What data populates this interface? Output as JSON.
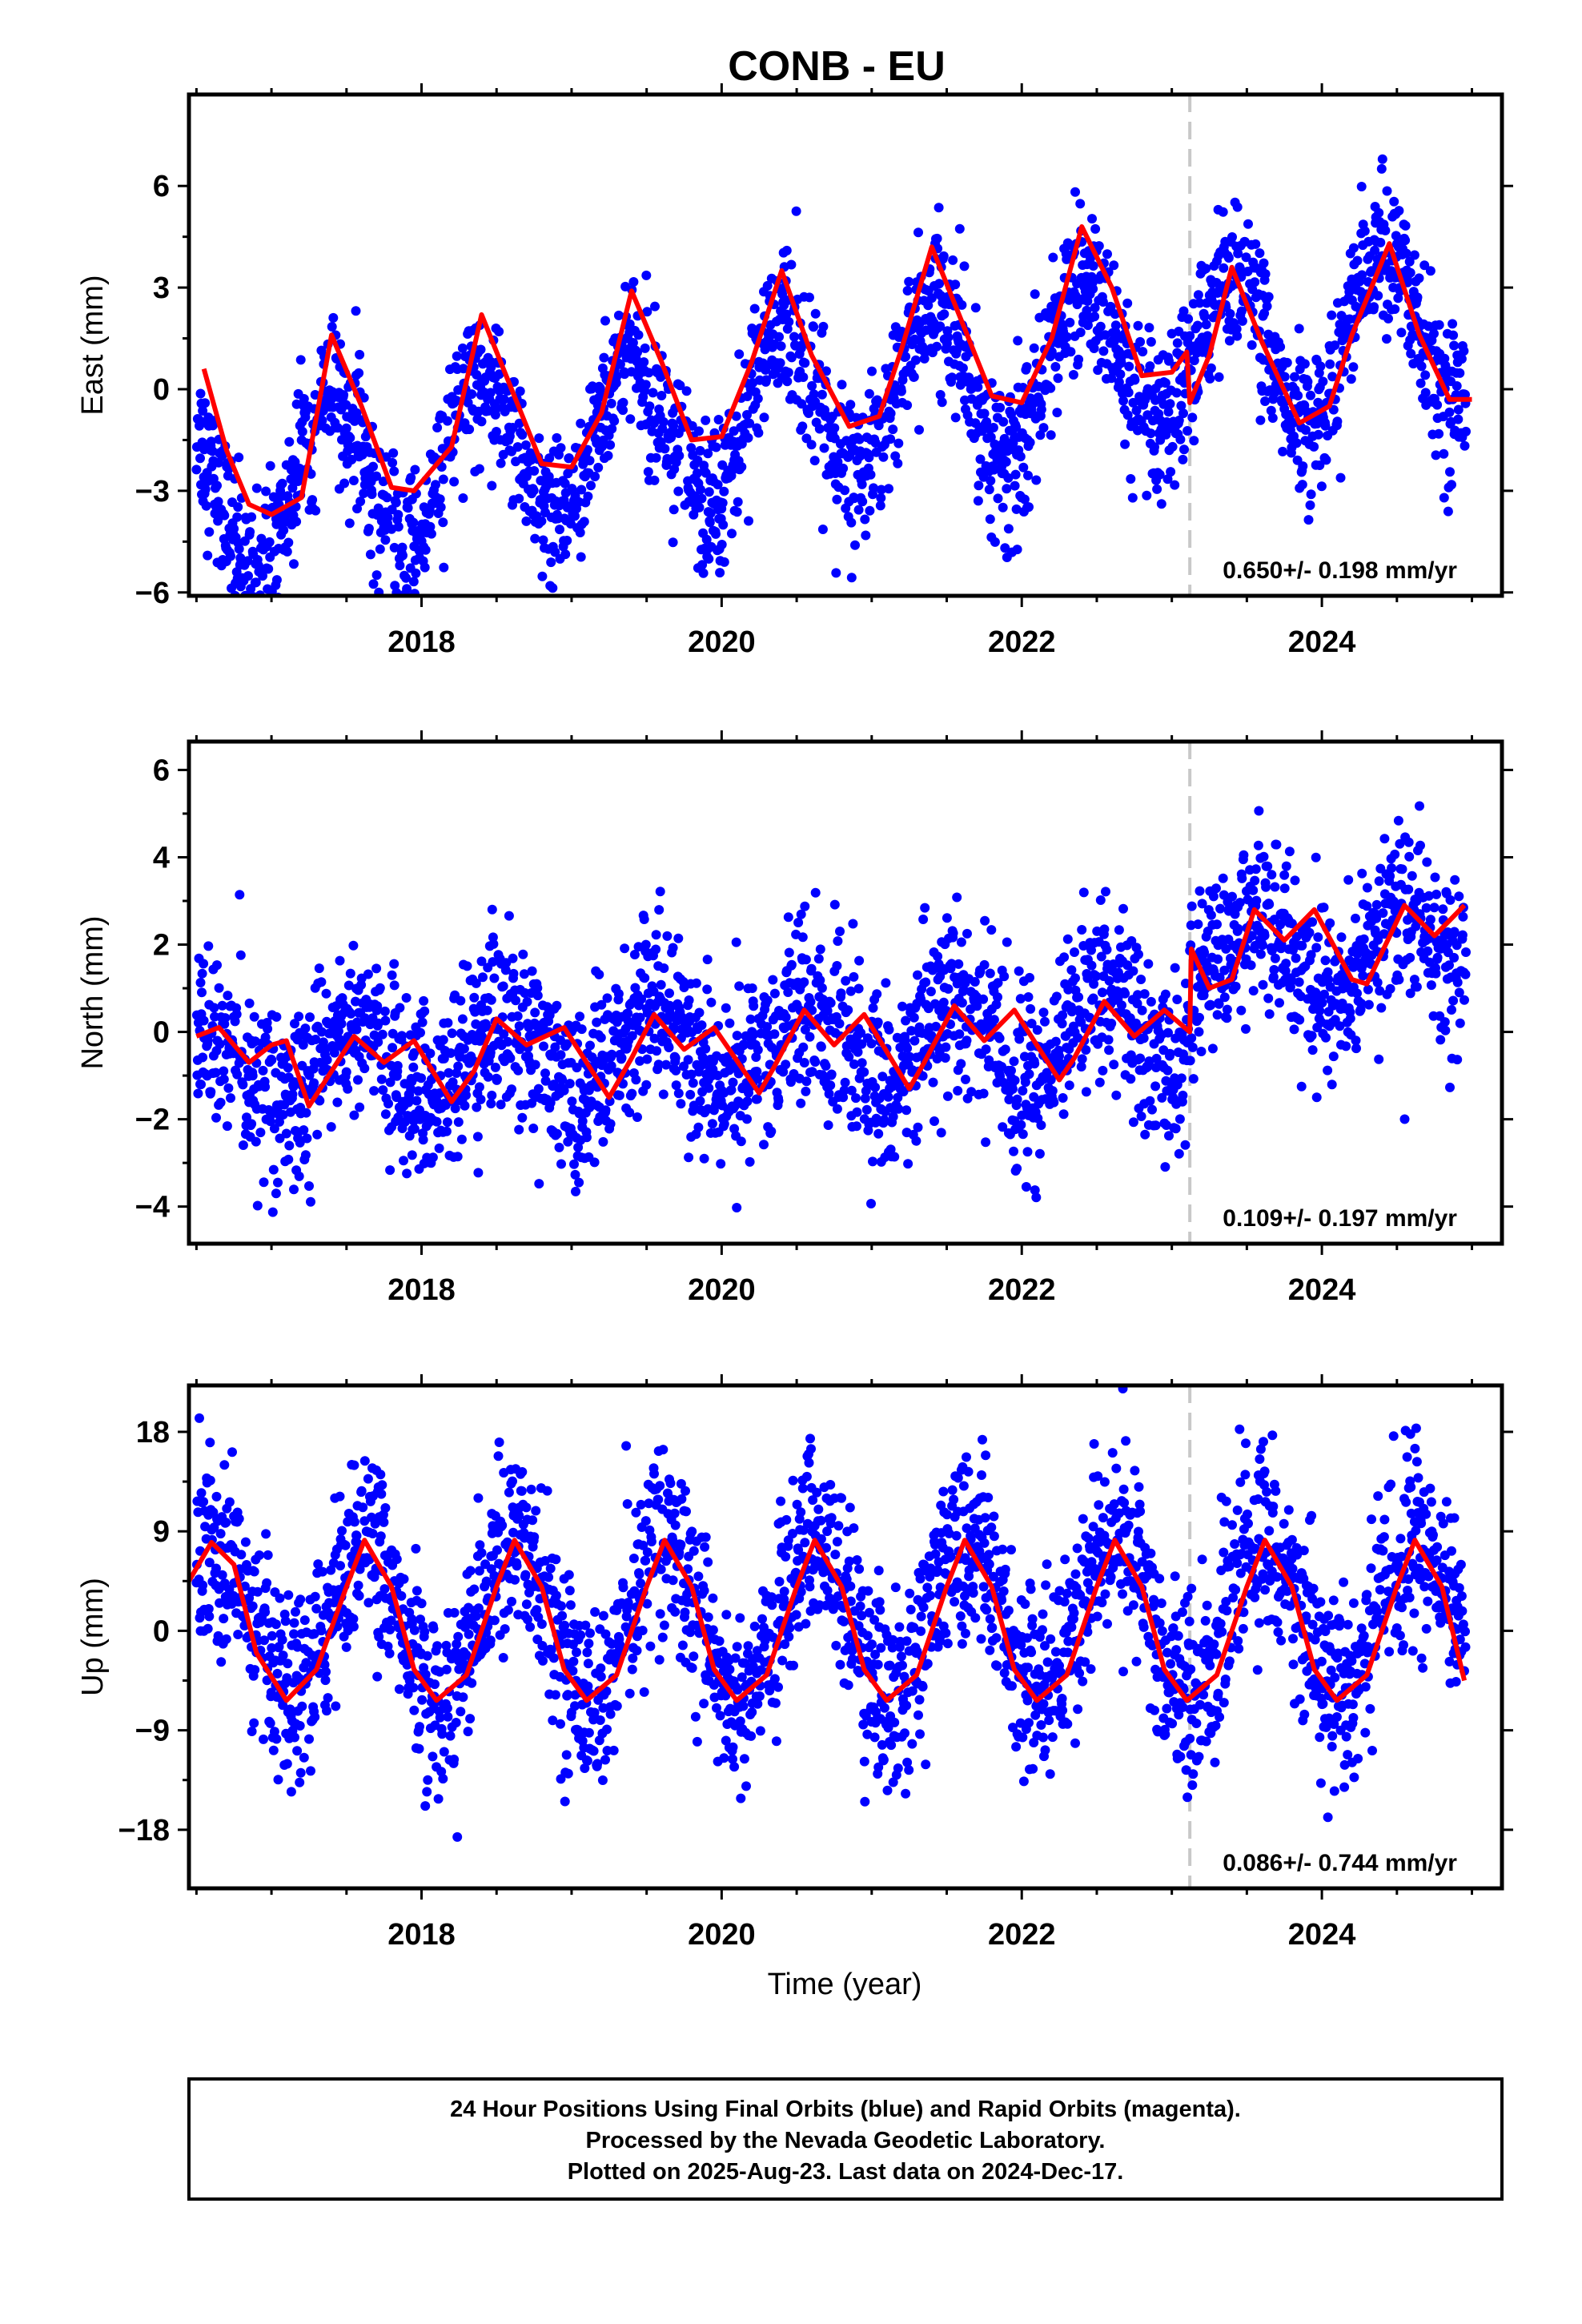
{
  "chart_data": {
    "type": "scatter",
    "title": "CONB - EU",
    "xlabel": "Time (year)",
    "xlim": [
      2016.45,
      2025.2
    ],
    "x_tick_labels": [
      "2018",
      "2020",
      "2022",
      "2024"
    ],
    "x_major_ticks": [
      2018,
      2020,
      2022,
      2024
    ],
    "event_line_x": 2023.12,
    "grid": false,
    "colors": {
      "points": "#0000ff",
      "fit": "#ff0000",
      "event_line": "#c8c8c8",
      "frame": "#000000"
    },
    "panels": [
      {
        "name": "east",
        "ylabel": "East (mm)",
        "ylim": [
          -6.1,
          8.7
        ],
        "y_ticks": [
          -6,
          -3,
          0,
          3,
          6
        ],
        "y_tick_labels": [
          "−6",
          "−3",
          "0",
          "3",
          "6"
        ],
        "rate_text": "0.650+/- 0.198 mm/yr",
        "series": [
          {
            "kind": "daily positions (blue)",
            "amplitude": 2.4,
            "phase_year": 2017.4,
            "slope": 0.65,
            "offset": -0.9,
            "offset_at_event": -0.3,
            "noise": 1.1
          },
          {
            "kind": "fit (red)",
            "points": [
              [
                2016.55,
                0.6
              ],
              [
                2016.7,
                -1.8
              ],
              [
                2016.85,
                -3.4
              ],
              [
                2017.0,
                -3.7
              ],
              [
                2017.2,
                -3.2
              ],
              [
                2017.4,
                1.6
              ],
              [
                2017.6,
                -0.5
              ],
              [
                2017.8,
                -2.9
              ],
              [
                2017.95,
                -3.0
              ],
              [
                2018.2,
                -1.7
              ],
              [
                2018.4,
                2.2
              ],
              [
                2018.6,
                0.0
              ],
              [
                2018.8,
                -2.2
              ],
              [
                2019.0,
                -2.3
              ],
              [
                2019.2,
                -0.7
              ],
              [
                2019.4,
                2.9
              ],
              [
                2019.6,
                0.8
              ],
              [
                2019.8,
                -1.5
              ],
              [
                2020.0,
                -1.4
              ],
              [
                2020.2,
                0.8
              ],
              [
                2020.4,
                3.5
              ],
              [
                2020.6,
                1.0
              ],
              [
                2020.85,
                -1.1
              ],
              [
                2021.05,
                -0.8
              ],
              [
                2021.2,
                1.2
              ],
              [
                2021.4,
                4.2
              ],
              [
                2021.6,
                2.0
              ],
              [
                2021.8,
                -0.2
              ],
              [
                2022.0,
                -0.4
              ],
              [
                2022.2,
                1.5
              ],
              [
                2022.4,
                4.8
              ],
              [
                2022.6,
                3.0
              ],
              [
                2022.8,
                0.4
              ],
              [
                2023.0,
                0.5
              ],
              [
                2023.1,
                1.1
              ],
              [
                2023.12,
                -0.4
              ],
              [
                2023.25,
                1.0
              ],
              [
                2023.4,
                3.6
              ],
              [
                2023.6,
                1.4
              ],
              [
                2023.85,
                -1.0
              ],
              [
                2024.05,
                -0.5
              ],
              [
                2024.2,
                1.6
              ],
              [
                2024.45,
                4.3
              ],
              [
                2024.65,
                1.6
              ],
              [
                2024.85,
                -0.3
              ],
              [
                2025.0,
                -0.3
              ]
            ]
          }
        ]
      },
      {
        "name": "north",
        "ylabel": "North (mm)",
        "ylim": [
          -4.85,
          6.65
        ],
        "y_ticks": [
          -4,
          -2,
          0,
          2,
          4,
          6
        ],
        "y_tick_labels": [
          "−4",
          "−2",
          "0",
          "2",
          "4",
          "6"
        ],
        "rate_text": "0.109+/- 0.197 mm/yr",
        "series": [
          {
            "kind": "daily positions (blue)",
            "amplitude": 0.9,
            "phase_year": 2017.55,
            "slope": 0.11,
            "offset": -0.4,
            "offset_at_event": 1.8,
            "noise": 1.0
          },
          {
            "kind": "fit (red)",
            "points": [
              [
                2016.5,
                -0.1
              ],
              [
                2016.65,
                0.1
              ],
              [
                2016.85,
                -0.7
              ],
              [
                2017.0,
                -0.3
              ],
              [
                2017.1,
                -0.2
              ],
              [
                2017.25,
                -1.7
              ],
              [
                2017.4,
                -0.9
              ],
              [
                2017.55,
                -0.1
              ],
              [
                2017.75,
                -0.7
              ],
              [
                2017.95,
                -0.2
              ],
              [
                2018.2,
                -1.6
              ],
              [
                2018.35,
                -0.9
              ],
              [
                2018.5,
                0.3
              ],
              [
                2018.7,
                -0.3
              ],
              [
                2018.95,
                0.1
              ],
              [
                2019.25,
                -1.5
              ],
              [
                2019.4,
                -0.6
              ],
              [
                2019.55,
                0.4
              ],
              [
                2019.75,
                -0.4
              ],
              [
                2019.95,
                0.1
              ],
              [
                2020.25,
                -1.4
              ],
              [
                2020.35,
                -0.8
              ],
              [
                2020.55,
                0.5
              ],
              [
                2020.75,
                -0.3
              ],
              [
                2020.95,
                0.4
              ],
              [
                2021.25,
                -1.3
              ],
              [
                2021.35,
                -0.7
              ],
              [
                2021.55,
                0.6
              ],
              [
                2021.75,
                -0.2
              ],
              [
                2021.95,
                0.5
              ],
              [
                2022.25,
                -1.1
              ],
              [
                2022.35,
                -0.6
              ],
              [
                2022.55,
                0.7
              ],
              [
                2022.75,
                -0.1
              ],
              [
                2022.95,
                0.5
              ],
              [
                2023.12,
                0.0
              ],
              [
                2023.13,
                1.9
              ],
              [
                2023.25,
                1.0
              ],
              [
                2023.4,
                1.2
              ],
              [
                2023.55,
                2.8
              ],
              [
                2023.75,
                2.1
              ],
              [
                2023.95,
                2.8
              ],
              [
                2024.2,
                1.2
              ],
              [
                2024.3,
                1.1
              ],
              [
                2024.55,
                2.9
              ],
              [
                2024.75,
                2.2
              ],
              [
                2024.95,
                2.9
              ]
            ]
          }
        ]
      },
      {
        "name": "up",
        "ylabel": "Up (mm)",
        "ylim": [
          -23.3,
          22.2
        ],
        "y_ticks": [
          -18,
          -9,
          0,
          9,
          18
        ],
        "y_tick_labels": [
          "−18",
          "−9",
          "0",
          "9",
          "18"
        ],
        "rate_text": "0.086+/- 0.744 mm/yr",
        "series": [
          {
            "kind": "daily positions (blue)",
            "amplitude": 7.2,
            "phase_year": 2017.62,
            "slope": 0.09,
            "offset": 1.0,
            "offset_at_event": 0.0,
            "noise": 4.2
          },
          {
            "kind": "fit (red)",
            "points": [
              [
                2016.45,
                4.5
              ],
              [
                2016.6,
                8.0
              ],
              [
                2016.75,
                6.0
              ],
              [
                2016.9,
                -2.0
              ],
              [
                2017.1,
                -6.3
              ],
              [
                2017.3,
                -3.5
              ],
              [
                2017.5,
                4.0
              ],
              [
                2017.62,
                8.2
              ],
              [
                2017.8,
                4.0
              ],
              [
                2017.95,
                -3.5
              ],
              [
                2018.1,
                -6.3
              ],
              [
                2018.3,
                -4.0
              ],
              [
                2018.5,
                4.0
              ],
              [
                2018.62,
                8.2
              ],
              [
                2018.8,
                4.0
              ],
              [
                2018.95,
                -3.5
              ],
              [
                2019.1,
                -6.3
              ],
              [
                2019.3,
                -4.0
              ],
              [
                2019.5,
                4.0
              ],
              [
                2019.62,
                8.2
              ],
              [
                2019.8,
                4.0
              ],
              [
                2019.95,
                -3.5
              ],
              [
                2020.1,
                -6.3
              ],
              [
                2020.3,
                -4.0
              ],
              [
                2020.5,
                4.0
              ],
              [
                2020.62,
                8.2
              ],
              [
                2020.8,
                4.0
              ],
              [
                2020.95,
                -3.5
              ],
              [
                2021.1,
                -6.3
              ],
              [
                2021.3,
                -4.0
              ],
              [
                2021.5,
                4.0
              ],
              [
                2021.62,
                8.2
              ],
              [
                2021.8,
                4.0
              ],
              [
                2021.95,
                -3.5
              ],
              [
                2022.1,
                -6.3
              ],
              [
                2022.3,
                -4.0
              ],
              [
                2022.5,
                4.0
              ],
              [
                2022.62,
                8.2
              ],
              [
                2022.8,
                4.0
              ],
              [
                2022.95,
                -3.5
              ],
              [
                2023.1,
                -6.3
              ],
              [
                2023.3,
                -4.0
              ],
              [
                2023.5,
                4.0
              ],
              [
                2023.62,
                8.2
              ],
              [
                2023.8,
                4.0
              ],
              [
                2023.95,
                -3.5
              ],
              [
                2024.1,
                -6.3
              ],
              [
                2024.3,
                -4.0
              ],
              [
                2024.5,
                4.0
              ],
              [
                2024.62,
                8.2
              ],
              [
                2024.8,
                4.0
              ],
              [
                2024.95,
                -4.5
              ]
            ]
          }
        ]
      }
    ]
  },
  "footer": {
    "line1": "24 Hour Positions Using Final Orbits (blue) and Rapid Orbits (magenta).",
    "line2": "Processed by the Nevada Geodetic Laboratory.",
    "line3": "Plotted on 2025-Aug-23. Last data on 2024-Dec-17."
  }
}
